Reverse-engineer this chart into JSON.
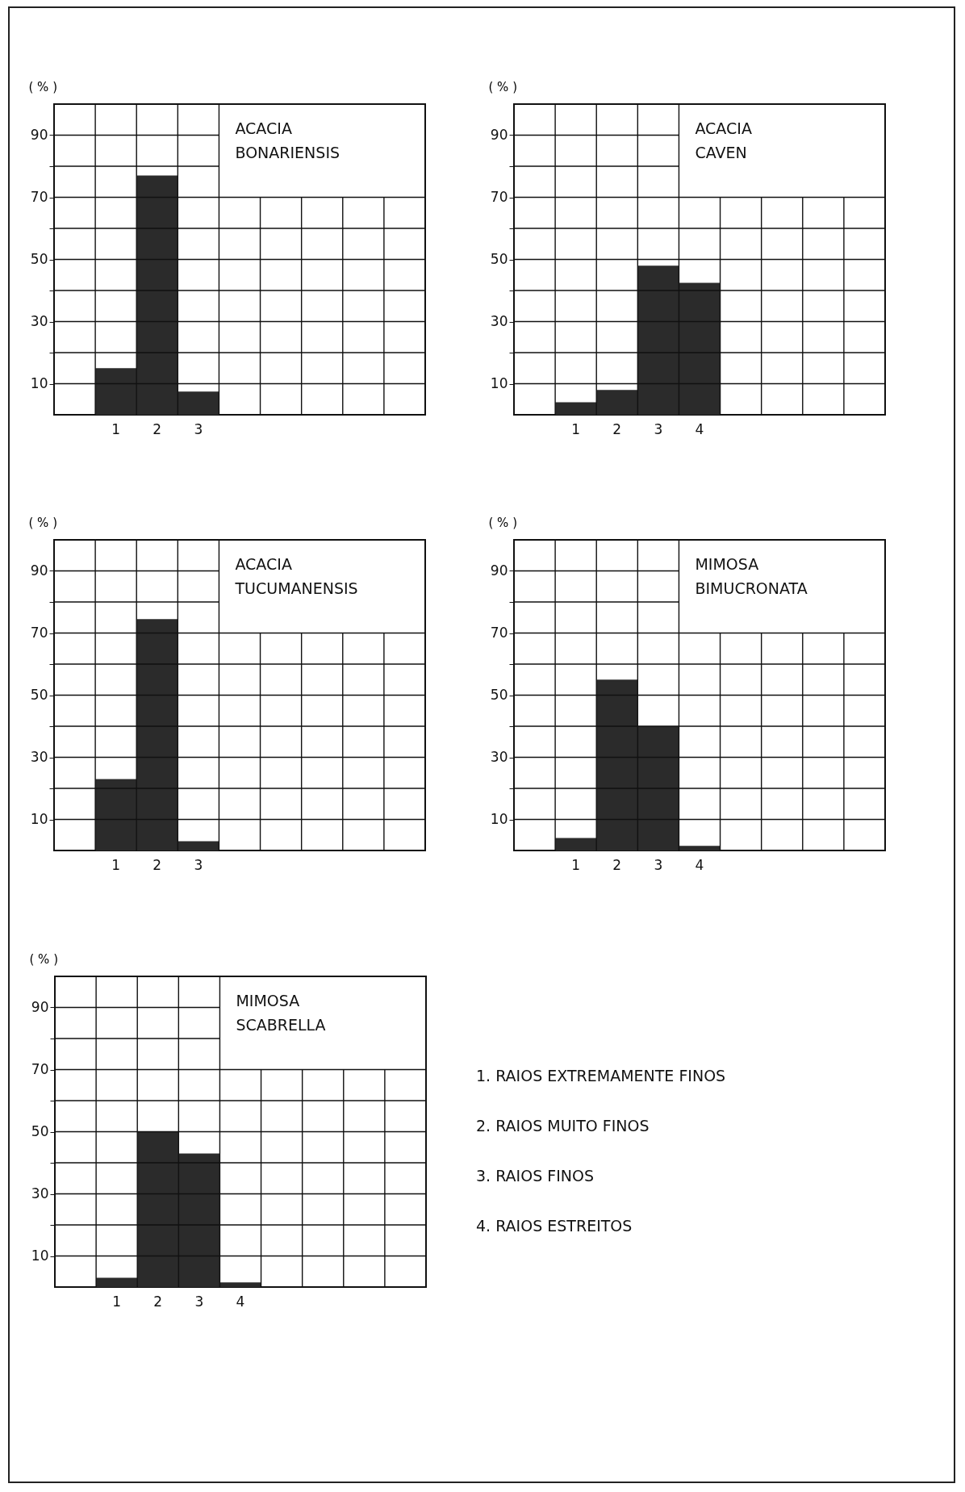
{
  "chart_data": [
    {
      "type": "bar",
      "title": "ACACIA BONARIENSIS",
      "ylabel": "( % )",
      "categories": [
        null,
        "1",
        "2",
        "3",
        null,
        null,
        null,
        null,
        null
      ],
      "values": [
        null,
        15,
        77,
        7.5,
        null,
        null,
        null,
        null,
        null
      ],
      "color": "#2b2b2b",
      "ylim": [
        0,
        100
      ],
      "yticks": [
        10,
        {
          "value": 20,
          "label": null
        },
        30,
        {
          "value": 40,
          "label": null
        },
        50,
        {
          "value": 60,
          "label": null
        },
        70,
        {
          "value": 80,
          "label": null
        },
        90
      ],
      "grid": true
    },
    {
      "type": "bar",
      "title": "ACACIA CAVEN",
      "ylabel": "( % )",
      "categories": [
        null,
        "1",
        "2",
        "3",
        "4",
        null,
        null,
        null,
        null
      ],
      "values": [
        null,
        4,
        8,
        48,
        42.5,
        null,
        null,
        null,
        null
      ],
      "color": "#2b2b2b",
      "ylim": [
        0,
        100
      ],
      "yticks": [
        10,
        {
          "value": 20,
          "label": null
        },
        30,
        {
          "value": 40,
          "label": null
        },
        50,
        {
          "value": 60,
          "label": null
        },
        70,
        {
          "value": 80,
          "label": null
        },
        90
      ],
      "grid": true
    },
    {
      "type": "bar",
      "title": "ACACIA TUCUMANENSIS",
      "ylabel": "( % )",
      "categories": [
        null,
        "1",
        "2",
        "3",
        null,
        null,
        null,
        null,
        null
      ],
      "values": [
        null,
        23,
        74.5,
        3,
        null,
        null,
        null,
        null,
        null
      ],
      "color": "#2b2b2b",
      "ylim": [
        0,
        100
      ],
      "yticks": [
        10,
        {
          "value": 20,
          "label": null
        },
        30,
        {
          "value": 40,
          "label": null
        },
        50,
        {
          "value": 60,
          "label": null
        },
        70,
        {
          "value": 80,
          "label": null
        },
        90
      ],
      "grid": true
    },
    {
      "type": "bar",
      "title": "MIMOSA BIMUCRONATA",
      "ylabel": "( % )",
      "categories": [
        null,
        "1",
        "2",
        "3",
        "4",
        null,
        null,
        null,
        null
      ],
      "values": [
        null,
        4,
        55,
        40,
        1.5,
        null,
        null,
        null,
        null
      ],
      "color": "#2b2b2b",
      "ylim": [
        0,
        100
      ],
      "yticks": [
        10,
        {
          "value": 20,
          "label": null
        },
        30,
        {
          "value": 40,
          "label": null
        },
        50,
        {
          "value": 60,
          "label": null
        },
        70,
        {
          "value": 80,
          "label": null
        },
        90
      ],
      "grid": true
    },
    {
      "type": "bar",
      "title": "MIMOSA SCABRELLA",
      "ylabel": "( % )",
      "categories": [
        null,
        "1",
        "2",
        "3",
        "4",
        null,
        null,
        null,
        null
      ],
      "values": [
        null,
        3,
        50,
        43,
        1.5,
        null,
        null,
        null,
        null
      ],
      "color": "#2b2b2b",
      "ylim": [
        0,
        100
      ],
      "yticks": [
        10,
        {
          "value": 20,
          "label": null
        },
        30,
        {
          "value": 40,
          "label": null
        },
        50,
        {
          "value": 60,
          "label": null
        },
        70,
        {
          "value": 80,
          "label": null
        },
        90
      ],
      "grid": true,
      "annotations": [
        "1.  RAIOS  EXTREMAMENTE  FINOS",
        "2.  RAIOS  MUITO  FINOS",
        "3.  RAIOS  FINOS",
        "4.  RAIOS  ESTREITOS"
      ]
    }
  ]
}
